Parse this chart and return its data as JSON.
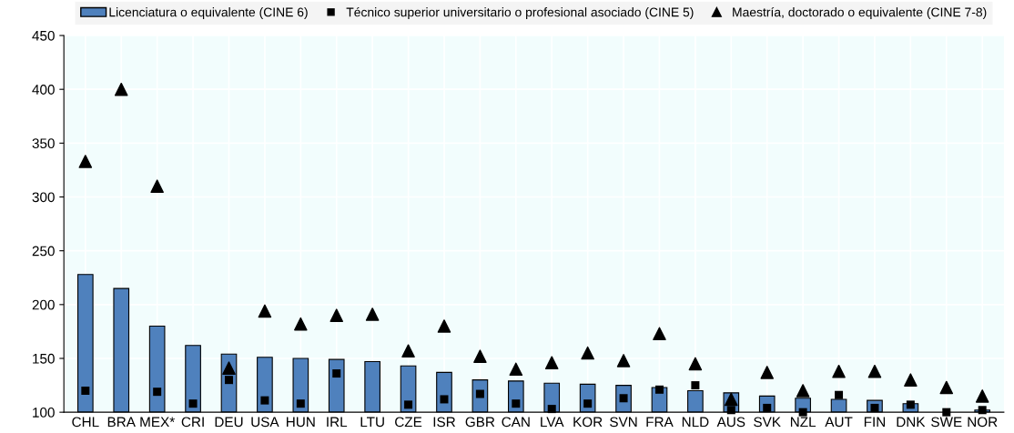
{
  "chart_data": {
    "type": "bar",
    "categories": [
      "CHL",
      "BRA",
      "MEX*",
      "CRI",
      "DEU",
      "USA",
      "HUN",
      "IRL",
      "LTU",
      "CZE",
      "ISR",
      "GBR",
      "CAN",
      "LVA",
      "KOR",
      "SVN",
      "FRA",
      "NLD",
      "AUS",
      "SVK",
      "NZL",
      "AUT",
      "FIN",
      "DNK",
      "SWE",
      "NOR"
    ],
    "series": [
      {
        "name": "Licenciatura o equivalente (CINE 6)",
        "color": "#4f81bd",
        "values": [
          228,
          215,
          180,
          162,
          154,
          151,
          150,
          149,
          147,
          143,
          137,
          130,
          129,
          127,
          126,
          125,
          123,
          120,
          118,
          115,
          113,
          112,
          111,
          108,
          null,
          102
        ]
      },
      {
        "name": "Técnico superior universitario o profesional asociado (CINE 5)",
        "type": "scatter",
        "marker": "square",
        "color": "#000000",
        "values": [
          120,
          null,
          119,
          108,
          130,
          111,
          108,
          136,
          null,
          107,
          112,
          117,
          108,
          103,
          108,
          113,
          121,
          125,
          102,
          104,
          100,
          116,
          104,
          107,
          100,
          102
        ]
      },
      {
        "name": "Maestría, doctorado o equivalente (CINE 7-8)",
        "type": "scatter",
        "marker": "triangle",
        "color": "#000000",
        "values": [
          333,
          400,
          310,
          null,
          141,
          194,
          182,
          190,
          191,
          157,
          180,
          152,
          140,
          146,
          155,
          148,
          173,
          145,
          112,
          137,
          120,
          138,
          138,
          130,
          123,
          115
        ]
      }
    ],
    "ylim": [
      100,
      450
    ],
    "yticks": [
      100,
      150,
      200,
      250,
      300,
      350,
      400,
      450
    ],
    "grid": true,
    "legend": "top"
  }
}
